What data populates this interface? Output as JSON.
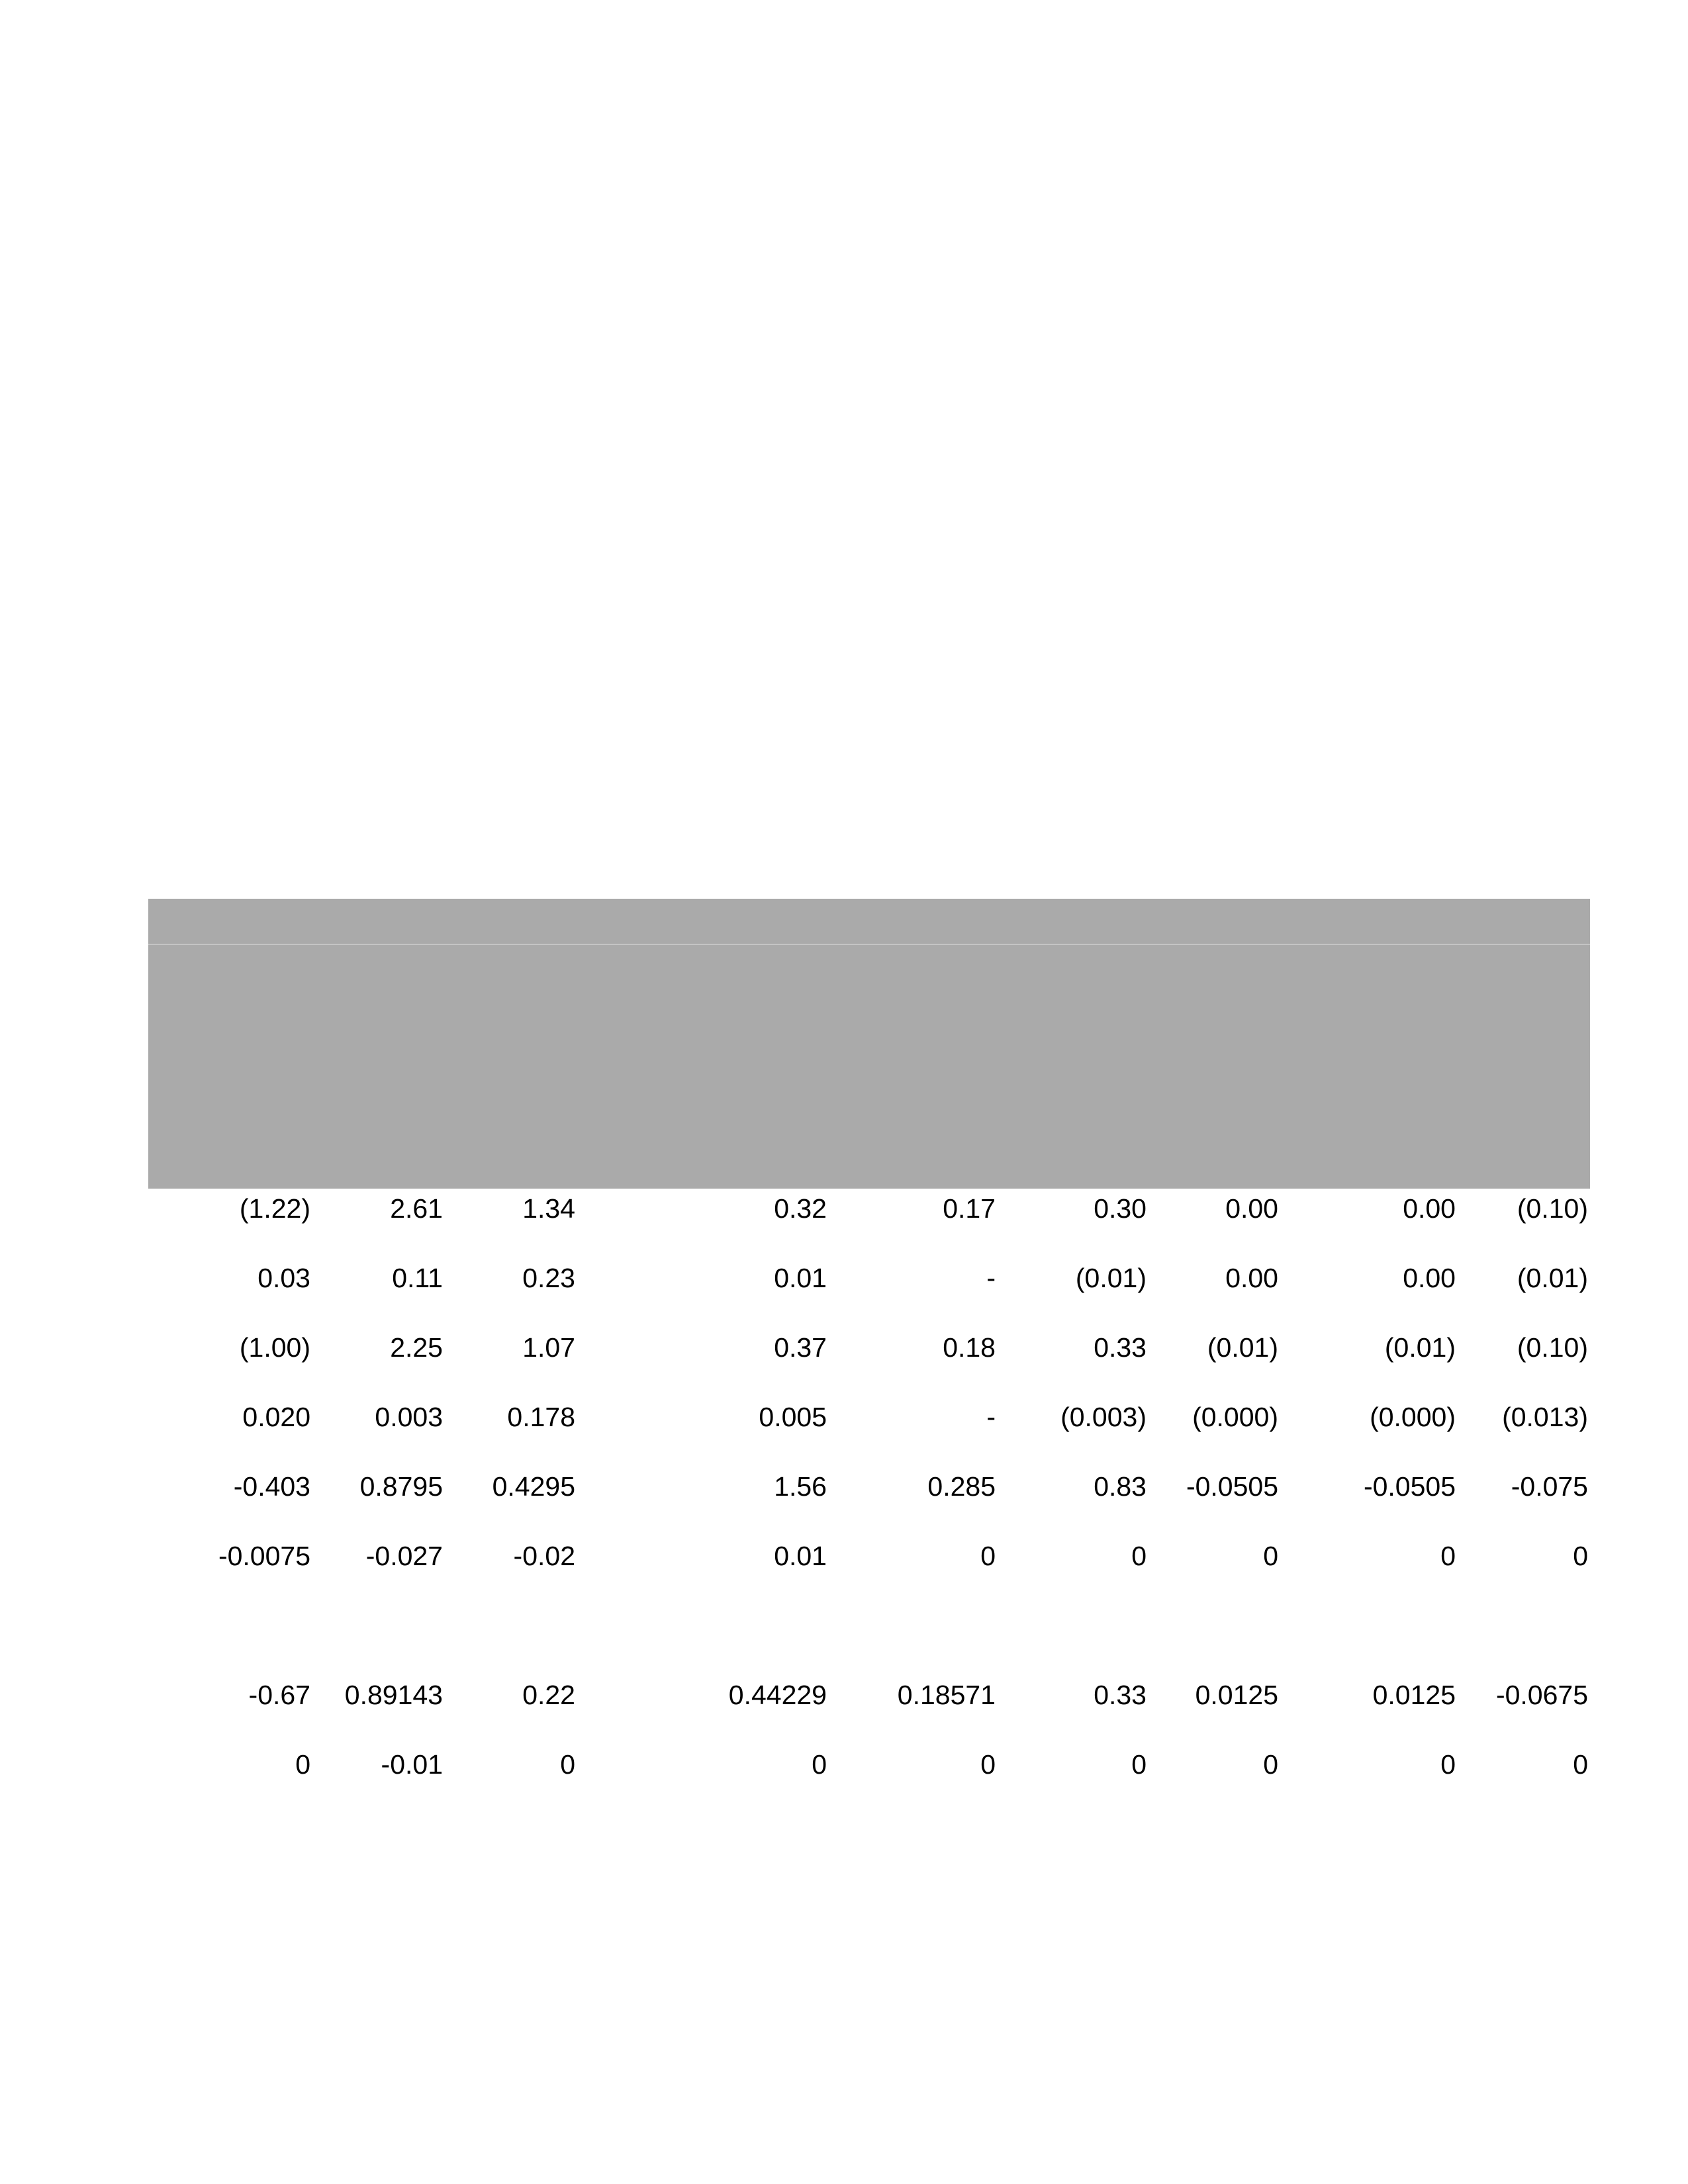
{
  "table": {
    "rows": [
      [
        "(1.22)",
        "2.61",
        "1.34",
        "0.32",
        "0.17",
        "0.30",
        "0.00",
        "0.00",
        "(0.10)"
      ],
      [
        "0.03",
        "0.11",
        "0.23",
        "0.01",
        "-",
        "(0.01)",
        "0.00",
        "0.00",
        "(0.01)"
      ],
      [
        "(1.00)",
        "2.25",
        "1.07",
        "0.37",
        "0.18",
        "0.33",
        "(0.01)",
        "(0.01)",
        "(0.10)"
      ],
      [
        "0.020",
        "0.003",
        "0.178",
        "0.005",
        "-",
        "(0.003)",
        "(0.000)",
        "(0.000)",
        "(0.013)"
      ],
      [
        "-0.403",
        "0.8795",
        "0.4295",
        "1.56",
        "0.285",
        "0.83",
        "-0.0505",
        "-0.0505",
        "-0.075"
      ],
      [
        "-0.0075",
        "-0.027",
        "-0.02",
        "0.01",
        "0",
        "0",
        "0",
        "0",
        "0"
      ],
      [
        "-0.67",
        "0.89143",
        "0.22",
        "0.44229",
        "0.18571",
        "0.33",
        "0.0125",
        "0.0125",
        "-0.0675"
      ],
      [
        "0",
        "-0.01",
        "0",
        "0",
        "0",
        "0",
        "0",
        "0",
        "0"
      ]
    ]
  }
}
